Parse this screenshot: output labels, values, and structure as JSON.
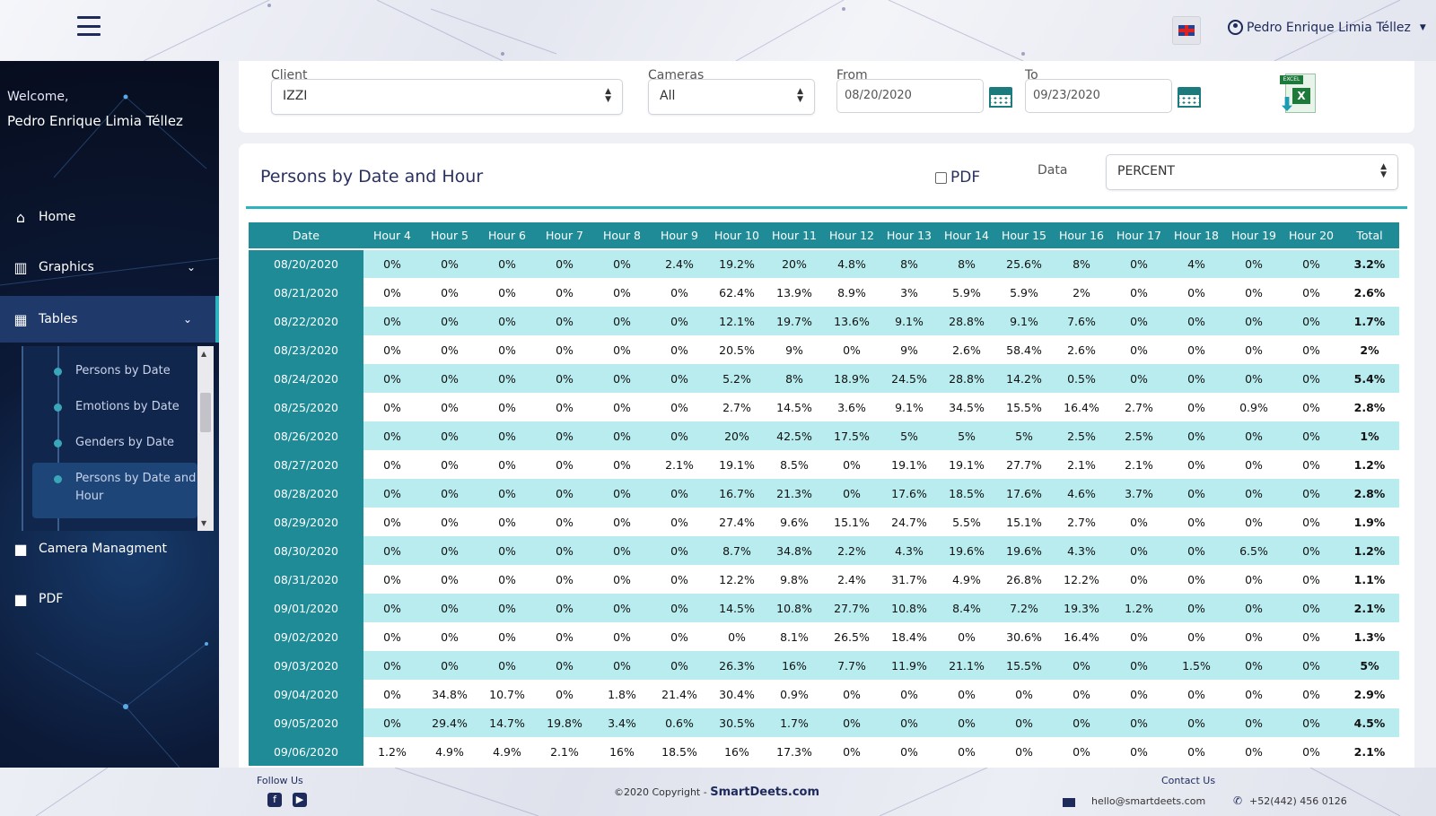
{
  "header": {
    "user_name": "Pedro Enrique Limia Téllez",
    "language": "EN"
  },
  "sidebar": {
    "welcome": "Welcome,",
    "welcome_name": "Pedro Enrique Limia Téllez",
    "items": [
      {
        "label": "Home",
        "icon": "home-icon"
      },
      {
        "label": "Graphics",
        "icon": "bar-chart-icon"
      },
      {
        "label": "Tables",
        "icon": "table-icon"
      },
      {
        "label": "Camera Managment",
        "icon": "video-camera-icon"
      },
      {
        "label": "PDF",
        "icon": "video-camera-icon"
      }
    ],
    "tables_submenu": [
      {
        "label": "Persons by Date"
      },
      {
        "label": "Emotions by Date"
      },
      {
        "label": "Genders by Date"
      },
      {
        "label": "Persons by Date and Hour",
        "active": true
      }
    ]
  },
  "filters": {
    "client_label": "Client",
    "client_value": "IZZI",
    "cameras_label": "Cameras",
    "cameras_value": "All",
    "from_label": "From",
    "from_value": "08/20/2020",
    "to_label": "To",
    "to_value": "09/23/2020",
    "excel_tag": "EXCEL",
    "excel_x": "X"
  },
  "card": {
    "title": "Persons by Date and Hour",
    "pdf_label": "PDF",
    "data_label": "Data",
    "data_value": "PERCENT"
  },
  "table": {
    "headers": [
      "Date",
      "Hour 4",
      "Hour 5",
      "Hour 6",
      "Hour 7",
      "Hour 8",
      "Hour 9",
      "Hour 10",
      "Hour 11",
      "Hour 12",
      "Hour 13",
      "Hour 14",
      "Hour 15",
      "Hour 16",
      "Hour 17",
      "Hour 18",
      "Hour 19",
      "Hour 20",
      "Total"
    ],
    "rows": [
      [
        "08/20/2020",
        "0%",
        "0%",
        "0%",
        "0%",
        "0%",
        "2.4%",
        "19.2%",
        "20%",
        "4.8%",
        "8%",
        "8%",
        "25.6%",
        "8%",
        "0%",
        "4%",
        "0%",
        "0%",
        "3.2%"
      ],
      [
        "08/21/2020",
        "0%",
        "0%",
        "0%",
        "0%",
        "0%",
        "0%",
        "62.4%",
        "13.9%",
        "8.9%",
        "3%",
        "5.9%",
        "5.9%",
        "2%",
        "0%",
        "0%",
        "0%",
        "0%",
        "2.6%"
      ],
      [
        "08/22/2020",
        "0%",
        "0%",
        "0%",
        "0%",
        "0%",
        "0%",
        "12.1%",
        "19.7%",
        "13.6%",
        "9.1%",
        "28.8%",
        "9.1%",
        "7.6%",
        "0%",
        "0%",
        "0%",
        "0%",
        "1.7%"
      ],
      [
        "08/23/2020",
        "0%",
        "0%",
        "0%",
        "0%",
        "0%",
        "0%",
        "20.5%",
        "9%",
        "0%",
        "9%",
        "2.6%",
        "58.4%",
        "2.6%",
        "0%",
        "0%",
        "0%",
        "0%",
        "2%"
      ],
      [
        "08/24/2020",
        "0%",
        "0%",
        "0%",
        "0%",
        "0%",
        "0%",
        "5.2%",
        "8%",
        "18.9%",
        "24.5%",
        "28.8%",
        "14.2%",
        "0.5%",
        "0%",
        "0%",
        "0%",
        "0%",
        "5.4%"
      ],
      [
        "08/25/2020",
        "0%",
        "0%",
        "0%",
        "0%",
        "0%",
        "0%",
        "2.7%",
        "14.5%",
        "3.6%",
        "9.1%",
        "34.5%",
        "15.5%",
        "16.4%",
        "2.7%",
        "0%",
        "0.9%",
        "0%",
        "2.8%"
      ],
      [
        "08/26/2020",
        "0%",
        "0%",
        "0%",
        "0%",
        "0%",
        "0%",
        "20%",
        "42.5%",
        "17.5%",
        "5%",
        "5%",
        "5%",
        "2.5%",
        "2.5%",
        "0%",
        "0%",
        "0%",
        "1%"
      ],
      [
        "08/27/2020",
        "0%",
        "0%",
        "0%",
        "0%",
        "0%",
        "2.1%",
        "19.1%",
        "8.5%",
        "0%",
        "19.1%",
        "19.1%",
        "27.7%",
        "2.1%",
        "2.1%",
        "0%",
        "0%",
        "0%",
        "1.2%"
      ],
      [
        "08/28/2020",
        "0%",
        "0%",
        "0%",
        "0%",
        "0%",
        "0%",
        "16.7%",
        "21.3%",
        "0%",
        "17.6%",
        "18.5%",
        "17.6%",
        "4.6%",
        "3.7%",
        "0%",
        "0%",
        "0%",
        "2.8%"
      ],
      [
        "08/29/2020",
        "0%",
        "0%",
        "0%",
        "0%",
        "0%",
        "0%",
        "27.4%",
        "9.6%",
        "15.1%",
        "24.7%",
        "5.5%",
        "15.1%",
        "2.7%",
        "0%",
        "0%",
        "0%",
        "0%",
        "1.9%"
      ],
      [
        "08/30/2020",
        "0%",
        "0%",
        "0%",
        "0%",
        "0%",
        "0%",
        "8.7%",
        "34.8%",
        "2.2%",
        "4.3%",
        "19.6%",
        "19.6%",
        "4.3%",
        "0%",
        "0%",
        "6.5%",
        "0%",
        "1.2%"
      ],
      [
        "08/31/2020",
        "0%",
        "0%",
        "0%",
        "0%",
        "0%",
        "0%",
        "12.2%",
        "9.8%",
        "2.4%",
        "31.7%",
        "4.9%",
        "26.8%",
        "12.2%",
        "0%",
        "0%",
        "0%",
        "0%",
        "1.1%"
      ],
      [
        "09/01/2020",
        "0%",
        "0%",
        "0%",
        "0%",
        "0%",
        "0%",
        "14.5%",
        "10.8%",
        "27.7%",
        "10.8%",
        "8.4%",
        "7.2%",
        "19.3%",
        "1.2%",
        "0%",
        "0%",
        "0%",
        "2.1%"
      ],
      [
        "09/02/2020",
        "0%",
        "0%",
        "0%",
        "0%",
        "0%",
        "0%",
        "0%",
        "8.1%",
        "26.5%",
        "18.4%",
        "0%",
        "30.6%",
        "16.4%",
        "0%",
        "0%",
        "0%",
        "0%",
        "1.3%"
      ],
      [
        "09/03/2020",
        "0%",
        "0%",
        "0%",
        "0%",
        "0%",
        "0%",
        "26.3%",
        "16%",
        "7.7%",
        "11.9%",
        "21.1%",
        "15.5%",
        "0%",
        "0%",
        "1.5%",
        "0%",
        "0%",
        "5%"
      ],
      [
        "09/04/2020",
        "0%",
        "34.8%",
        "10.7%",
        "0%",
        "1.8%",
        "21.4%",
        "30.4%",
        "0.9%",
        "0%",
        "0%",
        "0%",
        "0%",
        "0%",
        "0%",
        "0%",
        "0%",
        "0%",
        "2.9%"
      ],
      [
        "09/05/2020",
        "0%",
        "29.4%",
        "14.7%",
        "19.8%",
        "3.4%",
        "0.6%",
        "30.5%",
        "1.7%",
        "0%",
        "0%",
        "0%",
        "0%",
        "0%",
        "0%",
        "0%",
        "0%",
        "0%",
        "4.5%"
      ],
      [
        "09/06/2020",
        "1.2%",
        "4.9%",
        "4.9%",
        "2.1%",
        "16%",
        "18.5%",
        "16%",
        "17.3%",
        "0%",
        "0%",
        "0%",
        "0%",
        "0%",
        "0%",
        "0%",
        "0%",
        "0%",
        "2.1%"
      ]
    ]
  },
  "footer": {
    "follow": "Follow Us",
    "copyright": "©2020 Copyright - ",
    "brand": "SmartDeets.com",
    "contact": "Contact Us",
    "email": "hello@smartdeets.com",
    "phone": "+52(442) 456 0126"
  },
  "colors": {
    "accent": "#2db3be",
    "header_teal": "#1e8b97",
    "row_alt": "#b8ecee",
    "navy": "#1d2a5a"
  }
}
